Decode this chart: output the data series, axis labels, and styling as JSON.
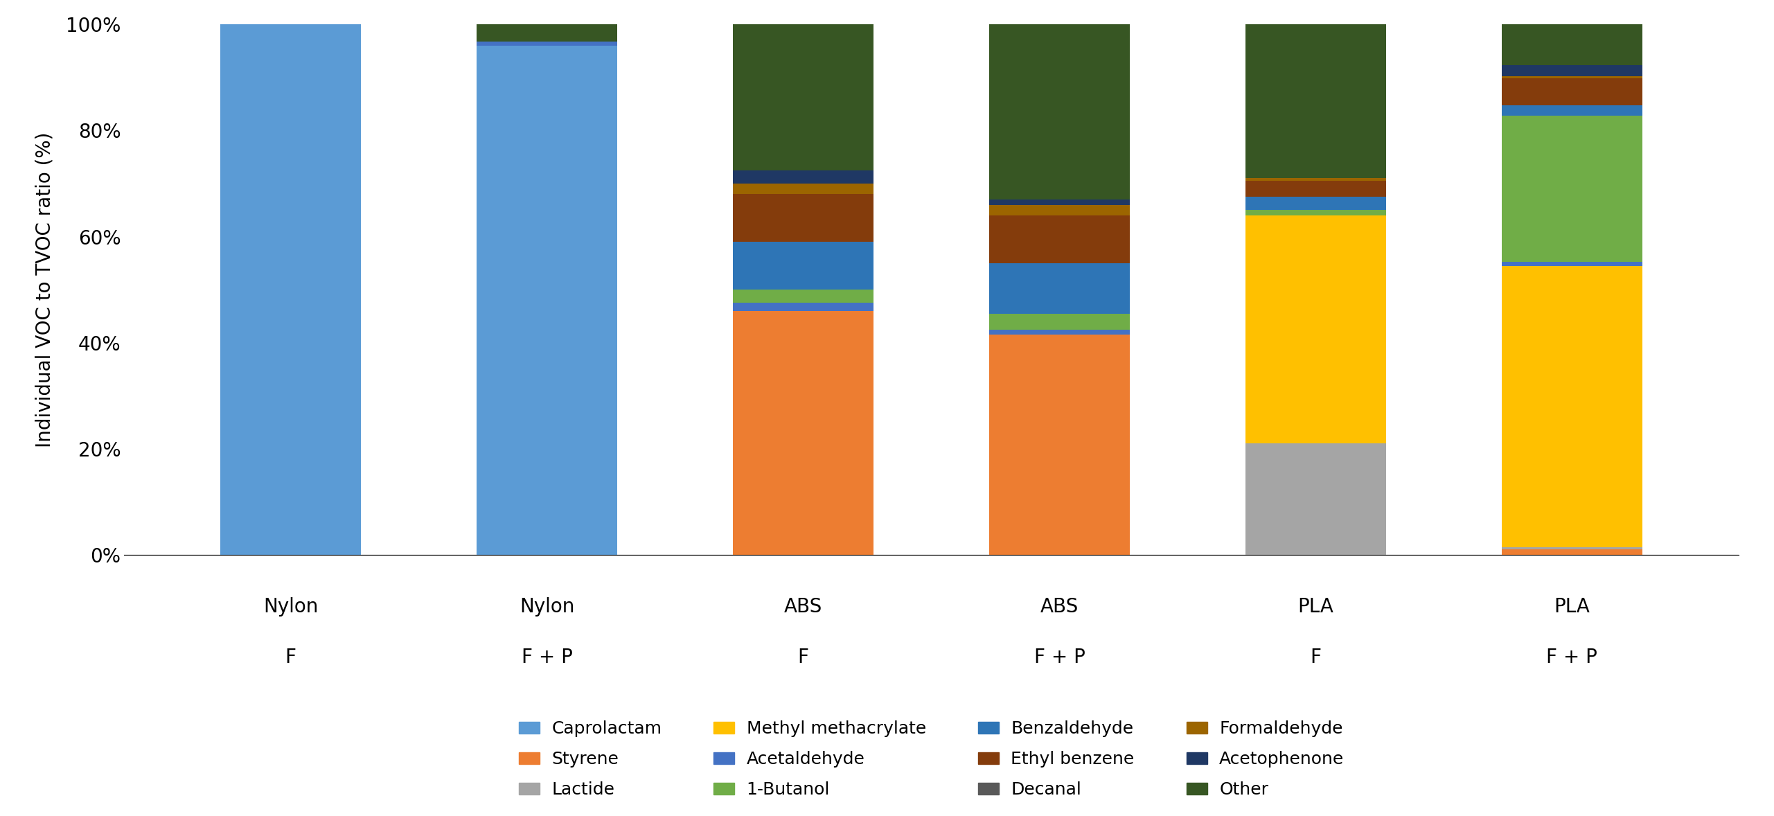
{
  "categories": [
    "Nylon",
    "Nylon",
    "ABS",
    "ABS",
    "PLA",
    "PLA"
  ],
  "sublabels": [
    "F",
    "F + P",
    "F",
    "F + P",
    "F",
    "F + P"
  ],
  "compounds": [
    "Caprolactam",
    "Styrene",
    "Lactide",
    "Methyl methacrylate",
    "Acetaldehyde",
    "1-Butanol",
    "Benzaldehyde",
    "Ethyl benzene",
    "Decanal",
    "Formaldehyde",
    "Acetophenone",
    "Other"
  ],
  "colors": [
    "#5B9BD5",
    "#ED7D31",
    "#A5A5A5",
    "#FFC000",
    "#4472C4",
    "#70AD47",
    "#2E75B6",
    "#843C0C",
    "#595959",
    "#9C6500",
    "#1F3864",
    "#375623"
  ],
  "data": {
    "Caprolactam": [
      1.0,
      0.96,
      0.0,
      0.0,
      0.0,
      0.0
    ],
    "Styrene": [
      0.0,
      0.0,
      0.46,
      0.415,
      0.0,
      0.01
    ],
    "Lactide": [
      0.0,
      0.0,
      0.0,
      0.0,
      0.21,
      0.005
    ],
    "Methyl methacrylate": [
      0.0,
      0.0,
      0.0,
      0.0,
      0.43,
      0.53
    ],
    "Acetaldehyde": [
      0.0,
      0.008,
      0.015,
      0.01,
      0.0,
      0.008
    ],
    "1-Butanol": [
      0.0,
      0.0,
      0.025,
      0.03,
      0.01,
      0.275
    ],
    "Benzaldehyde": [
      0.0,
      0.0,
      0.09,
      0.095,
      0.025,
      0.02
    ],
    "Ethyl benzene": [
      0.0,
      0.0,
      0.09,
      0.09,
      0.03,
      0.05
    ],
    "Decanal": [
      0.0,
      0.0,
      0.0,
      0.0,
      0.0,
      0.0
    ],
    "Formaldehyde": [
      0.0,
      0.0,
      0.02,
      0.02,
      0.005,
      0.005
    ],
    "Acetophenone": [
      0.0,
      0.0,
      0.025,
      0.01,
      0.0,
      0.02
    ],
    "Other": [
      0.0,
      0.032,
      0.275,
      0.33,
      0.29,
      0.077
    ]
  },
  "ylabel": "Individual VOC to TVOC ratio (%)",
  "ylim": [
    0,
    1.0
  ],
  "yticks": [
    0.0,
    0.2,
    0.4,
    0.6,
    0.8,
    1.0
  ],
  "ytick_labels": [
    "0%",
    "20%",
    "40%",
    "60%",
    "80%",
    "100%"
  ],
  "background_color": "#FFFFFF",
  "figsize": [
    25.61,
    11.78
  ],
  "dpi": 100
}
